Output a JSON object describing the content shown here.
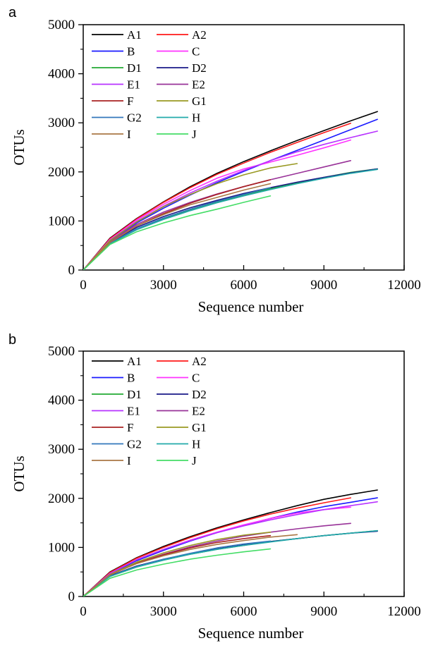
{
  "chart_data": [
    {
      "panel": "a",
      "type": "line",
      "xlabel": "Sequence number",
      "ylabel": "OTUs",
      "xlim": [
        0,
        12000
      ],
      "ylim": [
        0,
        5000
      ],
      "xticks": [
        "0",
        "3000",
        "6000",
        "9000",
        "12000"
      ],
      "yticks": [
        "0",
        "1000",
        "2000",
        "3000",
        "4000",
        "5000"
      ],
      "legend_position": "top-left",
      "grid": false,
      "series": [
        {
          "name": "A1",
          "color": "#000000",
          "x": [
            0,
            1000,
            2000,
            3000,
            4000,
            5000,
            6000,
            7000,
            8000,
            9000,
            10000,
            11000
          ],
          "y": [
            0,
            650,
            1050,
            1390,
            1700,
            1970,
            2210,
            2430,
            2640,
            2840,
            3040,
            3230
          ]
        },
        {
          "name": "A2",
          "color": "#ff1a1a",
          "x": [
            0,
            1000,
            2000,
            3000,
            4000,
            5000,
            6000,
            7000,
            8000,
            9000,
            10000
          ],
          "y": [
            0,
            640,
            1040,
            1380,
            1680,
            1950,
            2180,
            2400,
            2600,
            2800,
            2990
          ]
        },
        {
          "name": "B",
          "color": "#1a1aff",
          "x": [
            0,
            1000,
            2000,
            3000,
            4000,
            5000,
            6000,
            7000,
            8000,
            9000,
            10000,
            11000
          ],
          "y": [
            0,
            590,
            960,
            1260,
            1530,
            1780,
            2010,
            2230,
            2440,
            2650,
            2860,
            3070
          ]
        },
        {
          "name": "C",
          "color": "#ff33ff",
          "x": [
            0,
            1000,
            2000,
            3000,
            4000,
            5000,
            6000,
            7000,
            8000,
            9000,
            10000
          ],
          "y": [
            0,
            620,
            1020,
            1340,
            1620,
            1870,
            2060,
            2200,
            2340,
            2490,
            2650
          ]
        },
        {
          "name": "D1",
          "color": "#22aa33",
          "x": [
            0,
            1000,
            2000,
            3000,
            4000,
            5000,
            6000,
            7000,
            8000,
            9000,
            10000,
            11000
          ],
          "y": [
            0,
            540,
            830,
            1040,
            1220,
            1380,
            1530,
            1660,
            1780,
            1890,
            1990,
            2060
          ]
        },
        {
          "name": "D2",
          "color": "#1a1a88",
          "x": [
            0,
            1000,
            2000,
            3000,
            4000,
            5000,
            6000,
            7000,
            8000,
            9000,
            10000,
            11000
          ],
          "y": [
            0,
            560,
            870,
            1090,
            1270,
            1420,
            1560,
            1680,
            1790,
            1890,
            1980,
            2060
          ]
        },
        {
          "name": "E1",
          "color": "#b833ff",
          "x": [
            0,
            1000,
            2000,
            3000,
            4000,
            5000,
            6000,
            7000,
            8000,
            9000,
            10000,
            11000
          ],
          "y": [
            0,
            610,
            990,
            1300,
            1570,
            1810,
            2030,
            2230,
            2410,
            2560,
            2700,
            2830
          ]
        },
        {
          "name": "E2",
          "color": "#993399",
          "x": [
            0,
            1000,
            2000,
            3000,
            4000,
            5000,
            6000,
            7000,
            8000,
            9000,
            10000
          ],
          "y": [
            0,
            580,
            930,
            1180,
            1380,
            1550,
            1700,
            1840,
            1970,
            2100,
            2230
          ]
        },
        {
          "name": "F",
          "color": "#aa2222",
          "x": [
            0,
            1000,
            2000,
            3000,
            4000,
            5000,
            6000,
            7000
          ],
          "y": [
            0,
            560,
            900,
            1150,
            1360,
            1540,
            1700,
            1840
          ]
        },
        {
          "name": "G1",
          "color": "#999922",
          "x": [
            0,
            1000,
            2000,
            3000,
            4000,
            5000,
            6000,
            7000,
            8000
          ],
          "y": [
            0,
            600,
            980,
            1290,
            1540,
            1760,
            1940,
            2080,
            2170
          ]
        },
        {
          "name": "G2",
          "color": "#3377bb",
          "x": [
            0,
            1000,
            2000,
            3000,
            4000,
            5000,
            6000,
            7000
          ],
          "y": [
            0,
            540,
            840,
            1060,
            1240,
            1400,
            1540,
            1680
          ]
        },
        {
          "name": "H",
          "color": "#22aaaa",
          "x": [
            0,
            1000,
            2000,
            3000,
            4000,
            5000,
            6000,
            7000,
            8000,
            9000,
            10000,
            11000
          ],
          "y": [
            0,
            530,
            820,
            1030,
            1210,
            1370,
            1510,
            1640,
            1760,
            1870,
            1970,
            2050
          ]
        },
        {
          "name": "I",
          "color": "#aa7744",
          "x": [
            0,
            1000,
            2000,
            3000,
            4000,
            5000,
            6000,
            7000
          ],
          "y": [
            0,
            560,
            900,
            1130,
            1330,
            1480,
            1630,
            1760
          ]
        },
        {
          "name": "J",
          "color": "#44dd66",
          "x": [
            0,
            1000,
            2000,
            3000,
            4000,
            5000,
            6000,
            7000
          ],
          "y": [
            0,
            520,
            780,
            960,
            1110,
            1240,
            1380,
            1510
          ]
        }
      ]
    },
    {
      "panel": "b",
      "type": "line",
      "xlabel": "Sequence number",
      "ylabel": "OTUs",
      "xlim": [
        0,
        12000
      ],
      "ylim": [
        0,
        5000
      ],
      "xticks": [
        "0",
        "3000",
        "6000",
        "9000",
        "12000"
      ],
      "yticks": [
        "0",
        "1000",
        "2000",
        "3000",
        "4000",
        "5000"
      ],
      "legend_position": "top-left",
      "grid": false,
      "series": [
        {
          "name": "A1",
          "color": "#000000",
          "x": [
            0,
            1000,
            2000,
            3000,
            4000,
            5000,
            6000,
            7000,
            8000,
            9000,
            10000,
            11000
          ],
          "y": [
            0,
            500,
            790,
            1020,
            1220,
            1400,
            1560,
            1710,
            1850,
            1980,
            2080,
            2170
          ]
        },
        {
          "name": "A2",
          "color": "#ff1a1a",
          "x": [
            0,
            1000,
            2000,
            3000,
            4000,
            5000,
            6000,
            7000,
            8000,
            9000,
            10000
          ],
          "y": [
            0,
            490,
            780,
            1000,
            1200,
            1380,
            1540,
            1680,
            1800,
            1910,
            2010
          ]
        },
        {
          "name": "B",
          "color": "#1a1aff",
          "x": [
            0,
            1000,
            2000,
            3000,
            4000,
            5000,
            6000,
            7000,
            8000,
            9000,
            10000,
            11000
          ],
          "y": [
            0,
            460,
            730,
            940,
            1130,
            1300,
            1450,
            1590,
            1720,
            1830,
            1920,
            2010
          ]
        },
        {
          "name": "C",
          "color": "#ff33ff",
          "x": [
            0,
            1000,
            2000,
            3000,
            4000,
            5000,
            6000,
            7000,
            8000,
            9000,
            10000
          ],
          "y": [
            0,
            470,
            750,
            960,
            1150,
            1310,
            1460,
            1590,
            1700,
            1770,
            1820
          ]
        },
        {
          "name": "D1",
          "color": "#22aa33",
          "x": [
            0,
            1000,
            2000,
            3000,
            4000,
            5000,
            6000,
            7000,
            8000,
            9000,
            10000,
            11000
          ],
          "y": [
            0,
            410,
            600,
            740,
            860,
            960,
            1040,
            1120,
            1180,
            1240,
            1290,
            1340
          ]
        },
        {
          "name": "D2",
          "color": "#1a1a88",
          "x": [
            0,
            1000,
            2000,
            3000,
            4000,
            5000,
            6000,
            7000,
            8000,
            9000,
            10000,
            11000
          ],
          "y": [
            0,
            420,
            620,
            760,
            870,
            970,
            1050,
            1120,
            1180,
            1240,
            1290,
            1330
          ]
        },
        {
          "name": "E1",
          "color": "#b833ff",
          "x": [
            0,
            1000,
            2000,
            3000,
            4000,
            5000,
            6000,
            7000,
            8000,
            9000,
            10000,
            11000
          ],
          "y": [
            0,
            470,
            750,
            960,
            1140,
            1300,
            1440,
            1560,
            1670,
            1770,
            1850,
            1930
          ]
        },
        {
          "name": "E2",
          "color": "#993399",
          "x": [
            0,
            1000,
            2000,
            3000,
            4000,
            5000,
            6000,
            7000,
            8000,
            9000,
            10000
          ],
          "y": [
            0,
            440,
            680,
            860,
            1010,
            1130,
            1230,
            1310,
            1380,
            1440,
            1490
          ]
        },
        {
          "name": "F",
          "color": "#aa2222",
          "x": [
            0,
            1000,
            2000,
            3000,
            4000,
            5000,
            6000,
            7000
          ],
          "y": [
            0,
            440,
            680,
            850,
            990,
            1100,
            1180,
            1240
          ]
        },
        {
          "name": "G1",
          "color": "#999922",
          "x": [
            0,
            1000,
            2000,
            3000,
            4000,
            5000,
            6000,
            7000
          ],
          "y": [
            0,
            450,
            700,
            890,
            1040,
            1160,
            1250,
            1310
          ]
        },
        {
          "name": "G2",
          "color": "#3377bb",
          "x": [
            0,
            1000,
            2000,
            3000,
            4000,
            5000,
            6000,
            7000
          ],
          "y": [
            0,
            410,
            610,
            760,
            880,
            990,
            1070,
            1130
          ]
        },
        {
          "name": "H",
          "color": "#22aaaa",
          "x": [
            0,
            1000,
            2000,
            3000,
            4000,
            5000,
            6000,
            7000,
            8000,
            9000,
            10000,
            11000
          ],
          "y": [
            0,
            410,
            600,
            740,
            860,
            960,
            1040,
            1110,
            1180,
            1240,
            1290,
            1340
          ]
        },
        {
          "name": "I",
          "color": "#aa7744",
          "x": [
            0,
            1000,
            2000,
            3000,
            4000,
            5000,
            6000,
            7000,
            8000
          ],
          "y": [
            0,
            440,
            670,
            830,
            960,
            1060,
            1140,
            1210,
            1260
          ]
        },
        {
          "name": "J",
          "color": "#44dd66",
          "x": [
            0,
            1000,
            2000,
            3000,
            4000,
            5000,
            6000,
            7000
          ],
          "y": [
            0,
            370,
            540,
            660,
            760,
            840,
            910,
            970
          ]
        }
      ]
    }
  ]
}
